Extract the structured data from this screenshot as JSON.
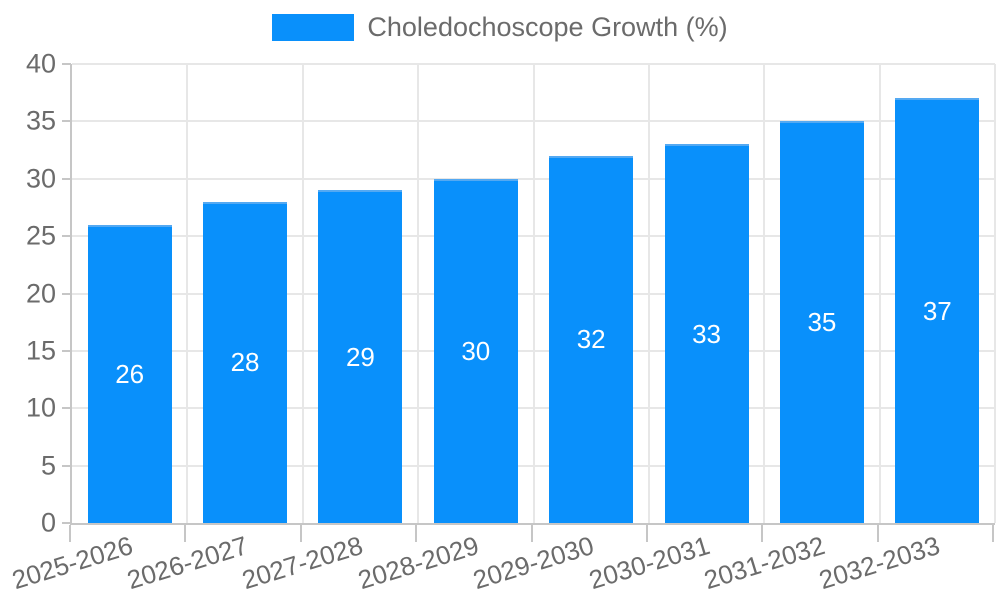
{
  "chart_data": {
    "type": "bar",
    "title": "Choledochoscope Growth (%)",
    "legend_position": "top",
    "categories": [
      "2025-2026",
      "2026-2027",
      "2027-2028",
      "2028-2029",
      "2029-2030",
      "2030-2031",
      "2031-2032",
      "2032-2033"
    ],
    "values": [
      26,
      28,
      29,
      30,
      32,
      33,
      35,
      37
    ],
    "xlabel": "",
    "ylabel": "",
    "ylim": [
      0,
      40
    ],
    "ytick_step": 5,
    "grid": true,
    "colors": {
      "bar": "#0990fb",
      "bar_border_top": "#54a9f2",
      "bar_label": "#ffffff",
      "grid": "#e7e7e7",
      "axis": "#c6c6c6",
      "tick_label": "#6b6b6b"
    }
  }
}
